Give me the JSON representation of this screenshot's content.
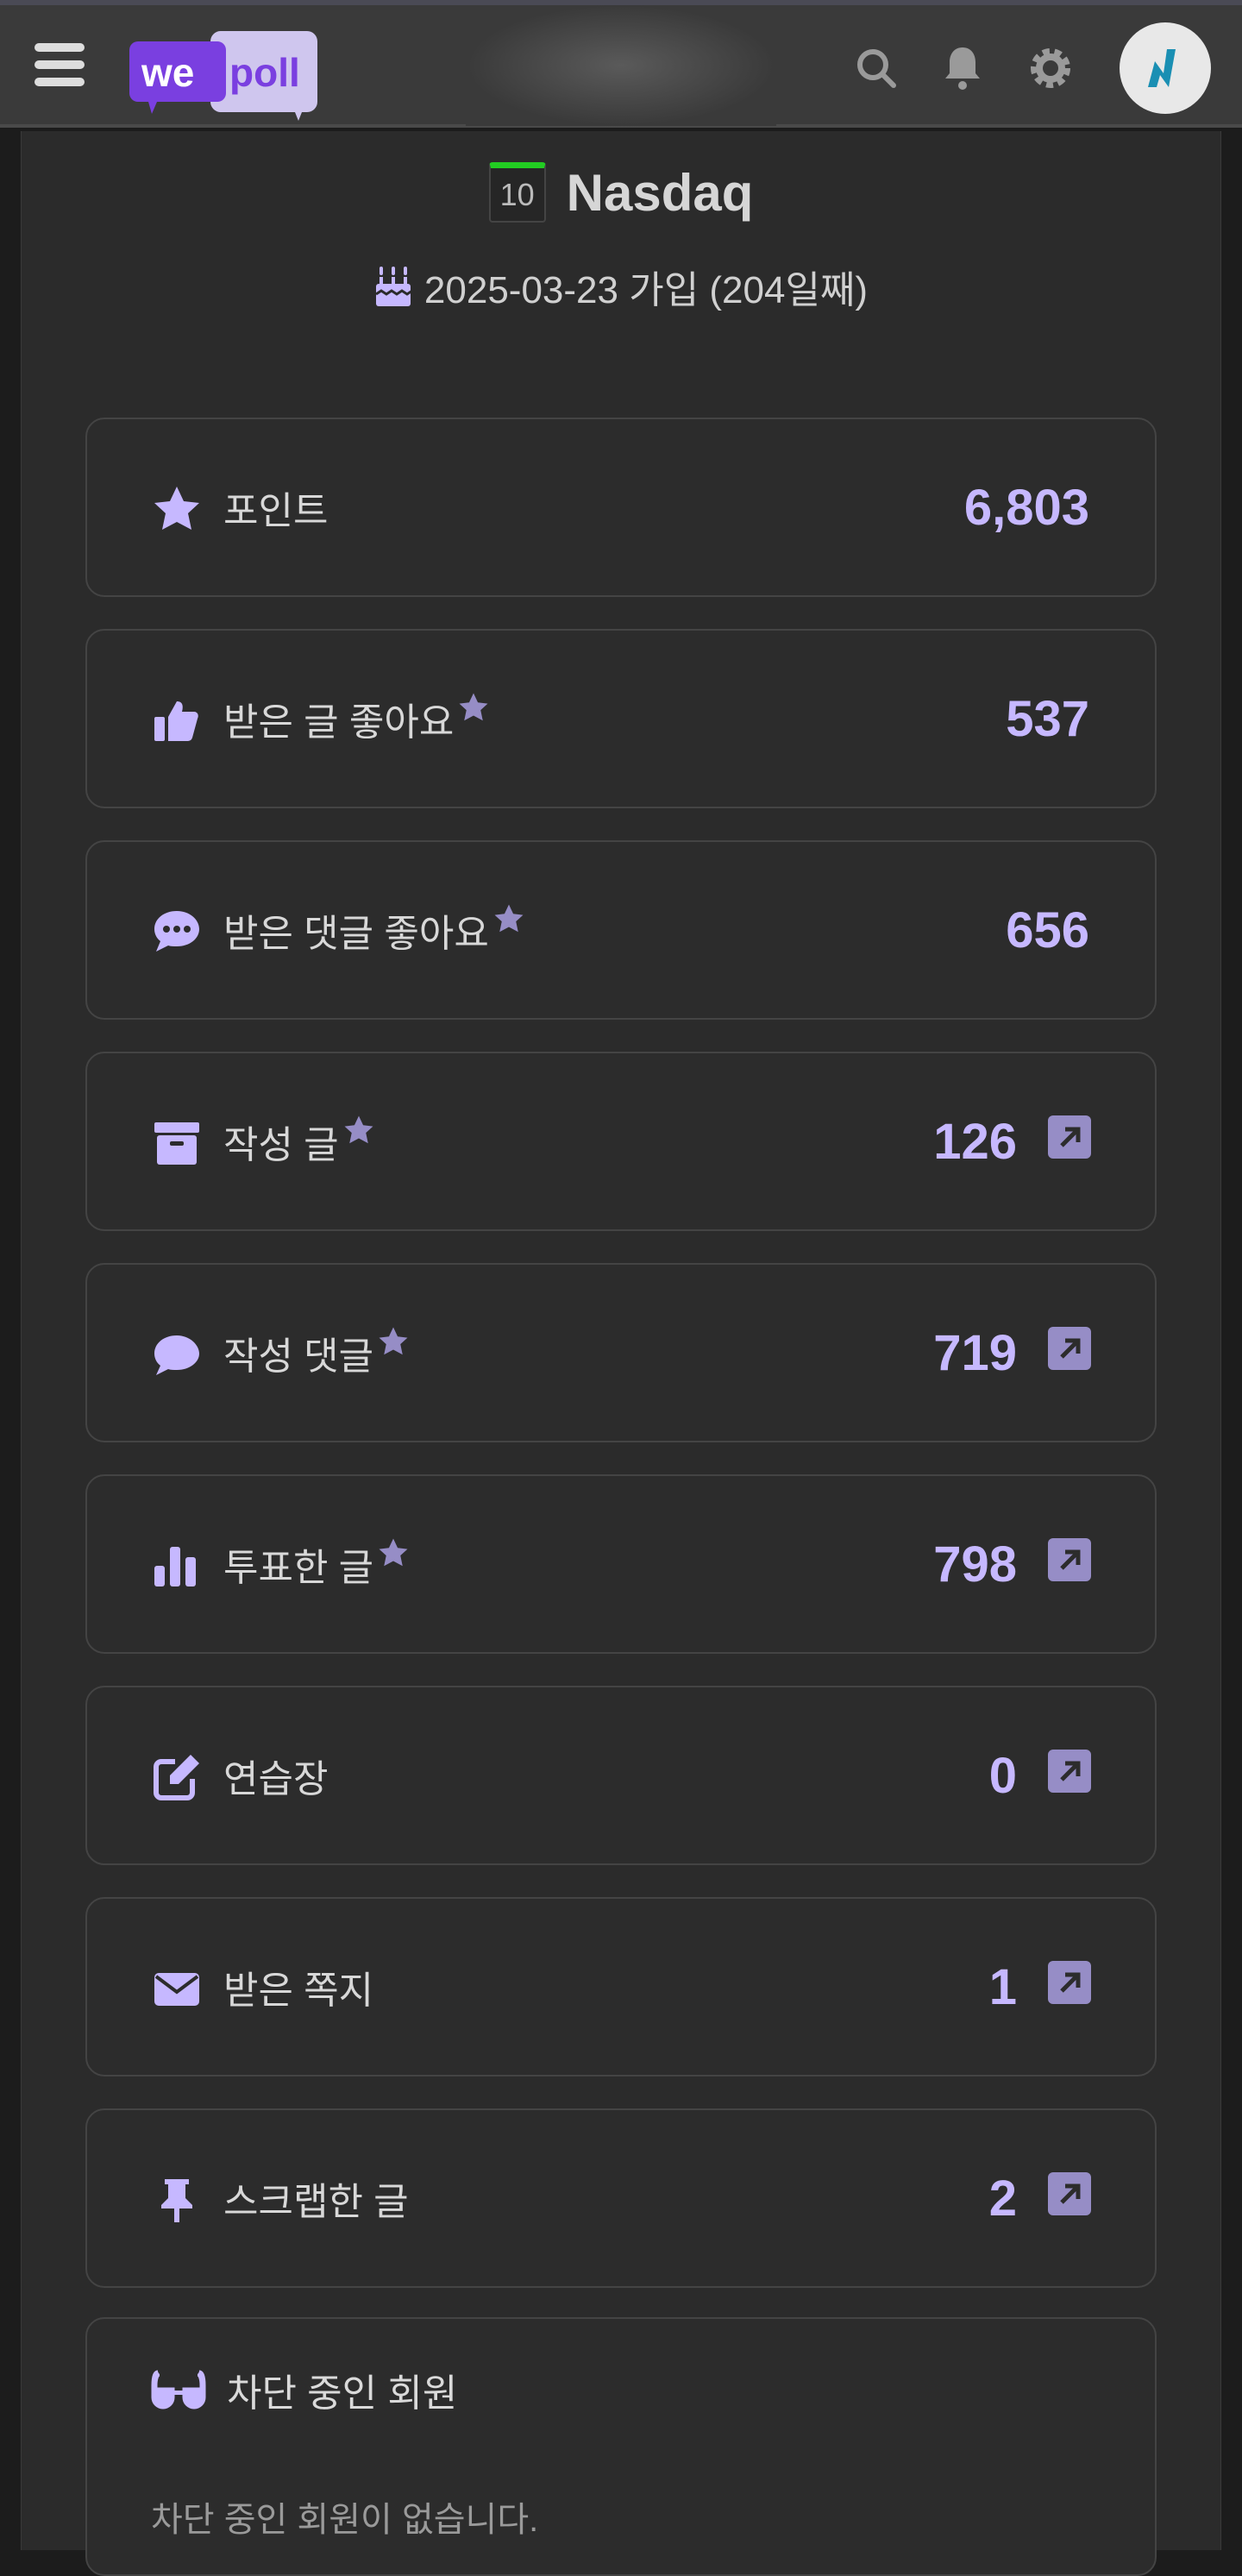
{
  "header": {
    "logo_text_1": "we",
    "logo_text_2": "poll",
    "icons": [
      "menu-icon",
      "search-icon",
      "bell-icon",
      "gear-icon",
      "avatar"
    ]
  },
  "profile": {
    "level": "10",
    "level_color": "#22cc22",
    "username": "Nasdaq",
    "joined": "2025-03-23 가입 (204일째)"
  },
  "accent": "#c6b8ff",
  "stats": [
    {
      "icon": "star",
      "label": "포인트",
      "value": "6,803",
      "starred": false,
      "link": false
    },
    {
      "icon": "thumbs-up",
      "label": "받은 글 좋아요",
      "value": "537",
      "starred": true,
      "link": false
    },
    {
      "icon": "comment-dots",
      "label": "받은 댓글 좋아요",
      "value": "656",
      "starred": true,
      "link": false
    },
    {
      "icon": "archive",
      "label": "작성 글",
      "value": "126",
      "starred": true,
      "link": true
    },
    {
      "icon": "comment",
      "label": "작성 댓글",
      "value": "719",
      "starred": true,
      "link": true
    },
    {
      "icon": "bar-chart",
      "label": "투표한 글",
      "value": "798",
      "starred": true,
      "link": true
    },
    {
      "icon": "edit",
      "label": "연습장",
      "value": "0",
      "starred": false,
      "link": true
    },
    {
      "icon": "envelope",
      "label": "받은 쪽지",
      "value": "1",
      "starred": false,
      "link": true
    },
    {
      "icon": "pin",
      "label": "스크랩한 글",
      "value": "2",
      "starred": false,
      "link": true
    }
  ],
  "blocked": {
    "title": "차단 중인 회원",
    "empty": "차단 중인 회원이 없습니다."
  }
}
